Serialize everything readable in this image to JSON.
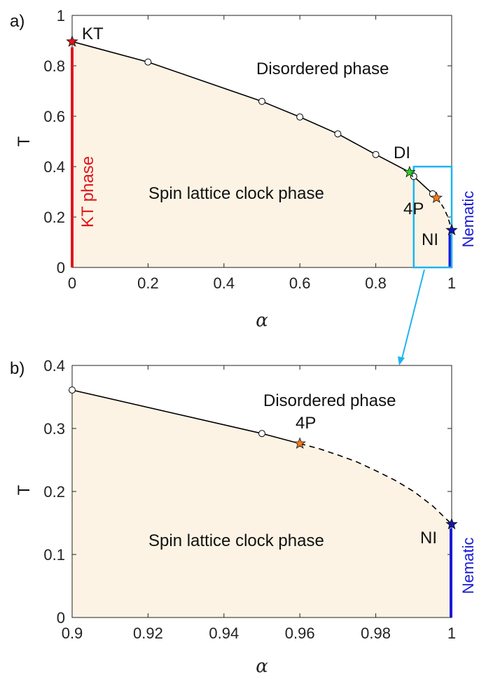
{
  "chart_data": [
    {
      "panel": "a)",
      "type": "line",
      "xlabel": "α",
      "ylabel": "T",
      "xlim": [
        0,
        1
      ],
      "ylim": [
        0,
        1
      ],
      "xticks": [
        "0",
        "0.2",
        "0.4",
        "0.6",
        "0.8",
        "1"
      ],
      "yticks": [
        "0",
        "0.2",
        "0.4",
        "0.6",
        "0.8",
        "1"
      ],
      "boundary_solid": [
        [
          0,
          0.896
        ],
        [
          0.2,
          0.815
        ],
        [
          0.5,
          0.659
        ],
        [
          0.6,
          0.597
        ],
        [
          0.7,
          0.53
        ],
        [
          0.8,
          0.448
        ],
        [
          0.889,
          0.378
        ],
        [
          0.9,
          0.361
        ],
        [
          0.95,
          0.292
        ],
        [
          0.96,
          0.276
        ]
      ],
      "boundary_dashed": [
        [
          0.96,
          0.276
        ],
        [
          0.97,
          0.258
        ],
        [
          0.98,
          0.233
        ],
        [
          0.99,
          0.2
        ],
        [
          1.0,
          0.148
        ]
      ],
      "open_points": [
        [
          0.2,
          0.815
        ],
        [
          0.5,
          0.659
        ],
        [
          0.6,
          0.597
        ],
        [
          0.7,
          0.53
        ],
        [
          0.8,
          0.448
        ],
        [
          0.9,
          0.361
        ],
        [
          0.95,
          0.292
        ]
      ],
      "special_points": [
        {
          "label": "KT",
          "x": 0.0,
          "y": 0.896,
          "color": "#e0161c"
        },
        {
          "label": "DI",
          "x": 0.889,
          "y": 0.378,
          "color": "#33cc22"
        },
        {
          "label": "4P",
          "x": 0.96,
          "y": 0.276,
          "color": "#f07a1e"
        },
        {
          "label": "NI",
          "x": 1.0,
          "y": 0.148,
          "color": "#1414b4"
        }
      ],
      "regions": [
        "Disordered phase",
        "Spin lattice clock phase"
      ],
      "vertical_labels": [
        {
          "text": "KT phase",
          "color": "#e0161c"
        },
        {
          "text": "Nematic",
          "color": "#1a1ad6"
        }
      ],
      "zoom_box": {
        "x": [
          0.9,
          1.0
        ],
        "y": [
          0.0,
          0.4
        ],
        "color": "#1eb4f0"
      }
    },
    {
      "panel": "b)",
      "type": "line",
      "xlabel": "α",
      "ylabel": "T",
      "xlim": [
        0.9,
        1
      ],
      "ylim": [
        0,
        0.4
      ],
      "xticks": [
        "0.9",
        "0.92",
        "0.94",
        "0.96",
        "0.98",
        "1"
      ],
      "yticks": [
        "0",
        "0.1",
        "0.2",
        "0.3",
        "0.4"
      ],
      "boundary_solid": [
        [
          0.9,
          0.361
        ],
        [
          0.95,
          0.292
        ],
        [
          0.96,
          0.276
        ]
      ],
      "boundary_dashed": [
        [
          0.96,
          0.276
        ],
        [
          0.965,
          0.268
        ],
        [
          0.97,
          0.258
        ],
        [
          0.975,
          0.247
        ],
        [
          0.98,
          0.233
        ],
        [
          0.985,
          0.218
        ],
        [
          0.99,
          0.2
        ],
        [
          0.995,
          0.177
        ],
        [
          1.0,
          0.148
        ]
      ],
      "open_points": [
        [
          0.9,
          0.361
        ],
        [
          0.95,
          0.292
        ]
      ],
      "special_points": [
        {
          "label": "4P",
          "x": 0.96,
          "y": 0.276,
          "color": "#f07a1e"
        },
        {
          "label": "NI",
          "x": 1.0,
          "y": 0.148,
          "color": "#1414b4"
        }
      ],
      "regions": [
        "Disordered phase",
        "Spin lattice clock phase"
      ],
      "vertical_labels": [
        {
          "text": "Nematic",
          "color": "#1a1ad6"
        }
      ]
    }
  ],
  "colors": {
    "fill": "#fcf3e4",
    "kt_phase": "#e0161c",
    "nematic": "#1a1ad6",
    "zoom": "#1eb4f0"
  }
}
